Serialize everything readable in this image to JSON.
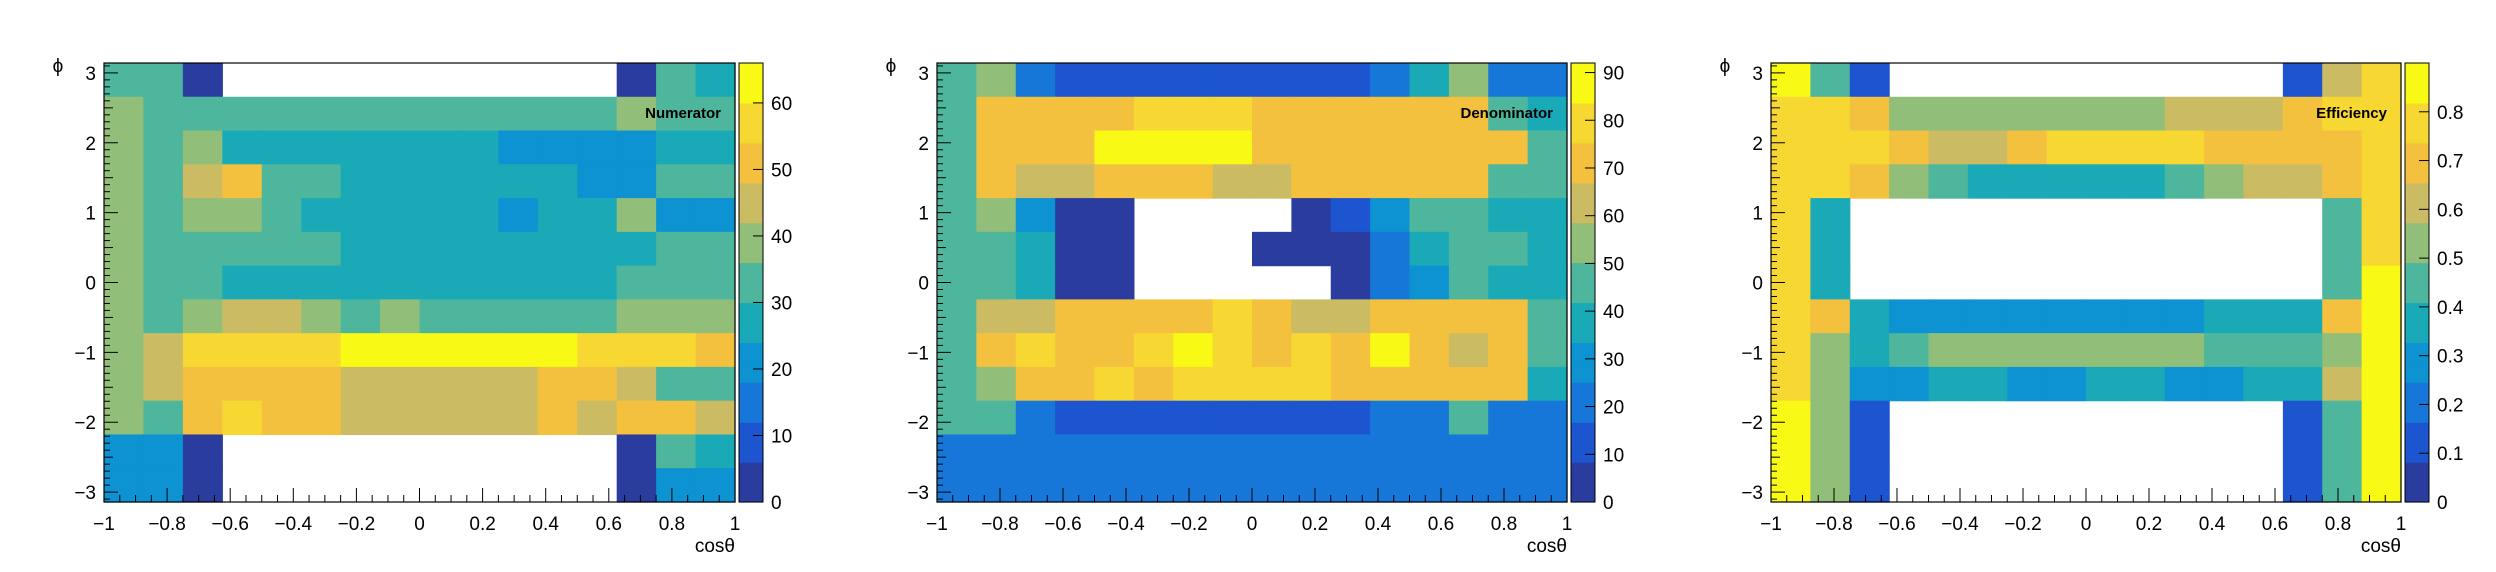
{
  "colors": {
    "palette": [
      "#2a3d9f",
      "#1d55d0",
      "#1777d8",
      "#0d92d2",
      "#1aaab7",
      "#4db69c",
      "#91be78",
      "#cbbc63",
      "#f4c13f",
      "#f7d732",
      "#f8f914"
    ],
    "empty": "#ffffff",
    "frame": "#000000"
  },
  "chart_data": [
    {
      "type": "heatmap",
      "title": "Numerator",
      "xlabel": "cosθ",
      "ylabel": "ϕ",
      "xlim": [
        -1,
        1
      ],
      "ylim": [
        -3.1416,
        3.1416
      ],
      "x_bins": 10,
      "y_bins": 12,
      "x_ticks": [
        "−1",
        "−0.8",
        "−0.6",
        "−0.4",
        "−0.2",
        "0",
        "0.2",
        "0.4",
        "0.6",
        "0.8",
        "1"
      ],
      "y_ticks": [
        "−3",
        "−2",
        "−1",
        "0",
        "1",
        "2",
        "3"
      ],
      "zlim": [
        0,
        66
      ],
      "z_ticks": [
        "0",
        "10",
        "20",
        "30",
        "40",
        "50",
        "60"
      ],
      "legend": "colorbar-right",
      "z": [
        [
          35,
          33,
          2,
          null,
          null,
          null,
          null,
          null,
          null,
          null,
          null,
          null,
          null,
          2,
          30,
          28
        ],
        [
          38,
          35,
          35,
          35,
          33,
          33,
          33,
          33,
          35,
          35,
          35,
          35,
          35,
          40,
          33,
          30
        ],
        [
          38,
          33,
          38,
          28,
          25,
          25,
          28,
          28,
          26,
          26,
          22,
          20,
          18,
          20,
          25,
          28
        ],
        [
          38,
          35,
          45,
          50,
          30,
          33,
          28,
          28,
          25,
          25,
          25,
          28,
          18,
          18,
          30,
          33
        ],
        [
          38,
          35,
          40,
          40,
          30,
          26,
          26,
          28,
          26,
          26,
          23,
          26,
          26,
          40,
          20,
          20
        ],
        [
          38,
          33,
          35,
          33,
          30,
          30,
          28,
          28,
          28,
          28,
          28,
          28,
          26,
          28,
          30,
          30
        ],
        [
          38,
          30,
          33,
          28,
          28,
          28,
          28,
          28,
          28,
          28,
          28,
          28,
          28,
          30,
          33,
          33
        ],
        [
          38,
          33,
          40,
          42,
          45,
          40,
          35,
          38,
          35,
          35,
          33,
          35,
          35,
          40,
          40,
          38
        ],
        [
          38,
          45,
          55,
          55,
          58,
          58,
          60,
          63,
          60,
          60,
          60,
          60,
          58,
          58,
          55,
          50
        ],
        [
          38,
          45,
          53,
          53,
          53,
          50,
          43,
          45,
          45,
          45,
          45,
          50,
          48,
          42,
          33,
          30
        ],
        [
          38,
          30,
          50,
          55,
          53,
          48,
          45,
          43,
          43,
          43,
          45,
          48,
          45,
          48,
          53,
          45
        ],
        [
          20,
          23,
          2,
          null,
          null,
          null,
          null,
          null,
          null,
          null,
          null,
          null,
          null,
          2,
          30,
          28
        ],
        [
          20,
          20,
          2,
          null,
          null,
          null,
          null,
          null,
          null,
          null,
          null,
          null,
          null,
          2,
          20,
          20
        ]
      ]
    },
    {
      "type": "heatmap",
      "title": "Denominator",
      "xlabel": "cosθ",
      "ylabel": "ϕ",
      "xlim": [
        -1,
        1
      ],
      "ylim": [
        -3.1416,
        3.1416
      ],
      "x_bins": 10,
      "y_bins": 12,
      "x_ticks": [
        "−1",
        "−0.8",
        "−0.6",
        "−0.4",
        "−0.2",
        "0",
        "0.2",
        "0.4",
        "0.6",
        "0.8",
        "1"
      ],
      "y_ticks": [
        "−3",
        "−2",
        "−1",
        "0",
        "1",
        "2",
        "3"
      ],
      "zlim": [
        0,
        92
      ],
      "z_ticks": [
        "0",
        "10",
        "20",
        "30",
        "40",
        "50",
        "60",
        "70",
        "80",
        "90"
      ],
      "legend": "colorbar-right",
      "z": [
        [
          48,
          53,
          20,
          15,
          15,
          15,
          15,
          15,
          15,
          15,
          15,
          20,
          35,
          53,
          20,
          20
        ],
        [
          48,
          70,
          73,
          70,
          75,
          80,
          80,
          78,
          75,
          70,
          70,
          75,
          75,
          70,
          45,
          40
        ],
        [
          48,
          70,
          75,
          70,
          85,
          88,
          85,
          88,
          75,
          75,
          70,
          70,
          70,
          70,
          70,
          45
        ],
        [
          48,
          70,
          65,
          65,
          70,
          75,
          70,
          65,
          65,
          70,
          70,
          70,
          70,
          70,
          50,
          45
        ],
        [
          48,
          55,
          30,
          5,
          5,
          null,
          null,
          null,
          null,
          5,
          15,
          30,
          45,
          50,
          40,
          40
        ],
        [
          48,
          50,
          35,
          5,
          5,
          null,
          null,
          null,
          5,
          5,
          5,
          25,
          38,
          48,
          43,
          40
        ],
        [
          48,
          45,
          35,
          5,
          5,
          null,
          null,
          null,
          null,
          null,
          5,
          20,
          30,
          42,
          40,
          40
        ],
        [
          48,
          65,
          65,
          70,
          70,
          75,
          75,
          80,
          70,
          65,
          65,
          70,
          70,
          70,
          70,
          50
        ],
        [
          48,
          70,
          78,
          72,
          75,
          78,
          90,
          78,
          75,
          80,
          75,
          88,
          72,
          65,
          68,
          45
        ],
        [
          48,
          55,
          73,
          75,
          78,
          73,
          78,
          80,
          78,
          78,
          75,
          75,
          75,
          75,
          70,
          40
        ],
        [
          48,
          45,
          25,
          15,
          15,
          15,
          15,
          15,
          15,
          15,
          15,
          20,
          25,
          50,
          25,
          20
        ],
        [
          20,
          20,
          20,
          20,
          20,
          20,
          20,
          20,
          20,
          20,
          20,
          20,
          20,
          20,
          20,
          20
        ],
        [
          20,
          20,
          20,
          20,
          20,
          20,
          20,
          20,
          20,
          20,
          20,
          20,
          20,
          20,
          20,
          20
        ]
      ]
    },
    {
      "type": "heatmap",
      "title": "Efficiency",
      "xlabel": "cosθ",
      "ylabel": "ϕ",
      "xlim": [
        -1,
        1
      ],
      "ylim": [
        -3.1416,
        3.1416
      ],
      "x_bins": 10,
      "y_bins": 12,
      "x_ticks": [
        "−1",
        "−0.8",
        "−0.6",
        "−0.4",
        "−0.2",
        "0",
        "0.2",
        "0.4",
        "0.6",
        "0.8",
        "1"
      ],
      "y_ticks": [
        "−3",
        "−2",
        "−1",
        "0",
        "1",
        "2",
        "3"
      ],
      "zlim": [
        0,
        0.9
      ],
      "z_ticks": [
        "0",
        "0.1",
        "0.2",
        "0.3",
        "0.4",
        "0.5",
        "0.6",
        "0.7",
        "0.8"
      ],
      "legend": "colorbar-right",
      "z": [
        [
          0.85,
          0.45,
          0.15,
          null,
          null,
          null,
          null,
          null,
          null,
          null,
          null,
          null,
          null,
          0.15,
          0.65,
          0.8
        ],
        [
          0.8,
          0.8,
          0.7,
          0.55,
          0.5,
          0.5,
          0.5,
          0.5,
          0.55,
          0.55,
          0.6,
          0.6,
          0.65,
          0.7,
          0.75,
          0.8
        ],
        [
          0.8,
          0.8,
          0.75,
          0.7,
          0.65,
          0.65,
          0.7,
          0.75,
          0.8,
          0.8,
          0.75,
          0.7,
          0.7,
          0.7,
          0.7,
          0.8
        ],
        [
          0.8,
          0.75,
          0.7,
          0.55,
          0.45,
          0.4,
          0.4,
          0.4,
          0.4,
          0.4,
          0.45,
          0.55,
          0.6,
          0.65,
          0.7,
          0.8
        ],
        [
          0.8,
          0.4,
          null,
          null,
          null,
          null,
          null,
          null,
          null,
          null,
          null,
          null,
          null,
          null,
          0.45,
          0.8
        ],
        [
          0.8,
          0.4,
          null,
          null,
          null,
          null,
          null,
          null,
          null,
          null,
          null,
          null,
          null,
          null,
          0.45,
          0.8
        ],
        [
          0.8,
          0.4,
          null,
          null,
          null,
          null,
          null,
          null,
          null,
          null,
          null,
          null,
          null,
          null,
          0.45,
          0.85
        ],
        [
          0.8,
          0.7,
          0.4,
          0.3,
          0.25,
          0.25,
          0.3,
          0.3,
          0.25,
          0.25,
          0.3,
          0.35,
          0.35,
          0.4,
          0.7,
          0.85
        ],
        [
          0.8,
          0.5,
          0.4,
          0.45,
          0.55,
          0.55,
          0.5,
          0.5,
          0.55,
          0.5,
          0.5,
          0.45,
          0.45,
          0.45,
          0.5,
          0.85
        ],
        [
          0.8,
          0.5,
          0.3,
          0.3,
          0.35,
          0.35,
          0.3,
          0.3,
          0.35,
          0.35,
          0.3,
          0.3,
          0.35,
          0.35,
          0.65,
          0.85
        ],
        [
          0.85,
          0.5,
          0.15,
          null,
          null,
          null,
          null,
          null,
          null,
          null,
          null,
          null,
          null,
          0.15,
          0.45,
          0.85
        ],
        [
          0.85,
          0.5,
          0.15,
          null,
          null,
          null,
          null,
          null,
          null,
          null,
          null,
          null,
          null,
          0.15,
          0.45,
          0.85
        ],
        [
          0.85,
          0.5,
          0.15,
          null,
          null,
          null,
          null,
          null,
          null,
          null,
          null,
          null,
          null,
          0.15,
          0.45,
          0.85
        ]
      ]
    }
  ]
}
